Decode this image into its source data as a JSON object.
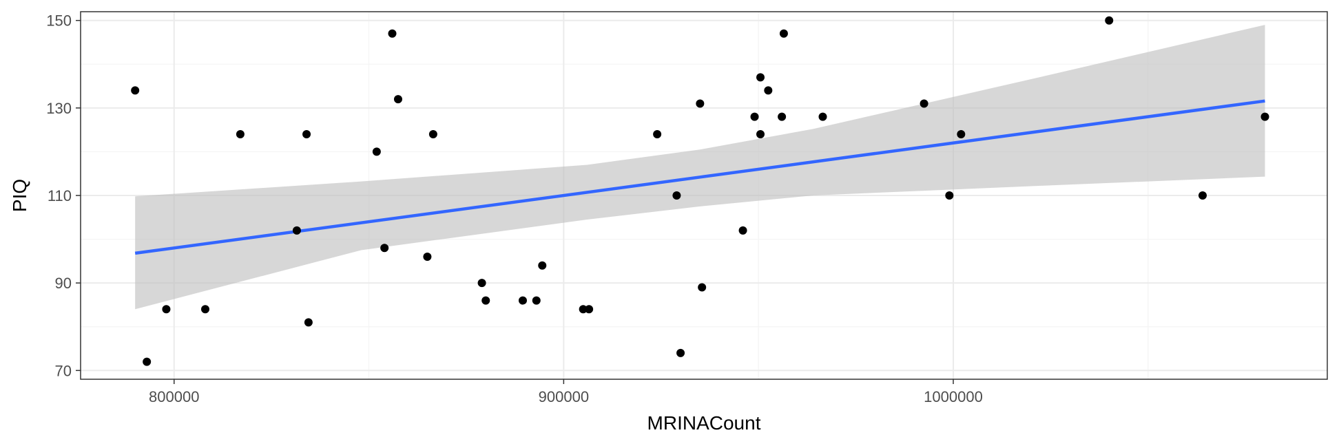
{
  "chart_data": {
    "type": "scatter",
    "title": "",
    "xlabel": "MRINACount",
    "ylabel": "PIQ",
    "xlim": [
      776000,
      1096000
    ],
    "ylim": [
      68,
      152
    ],
    "x_ticks": [
      800000,
      900000,
      1000000
    ],
    "x_tick_labels": [
      "800000",
      "900000",
      "1000000"
    ],
    "x_minor_ticks": [
      850000,
      950000,
      1050000
    ],
    "y_ticks": [
      70,
      90,
      110,
      130,
      150
    ],
    "y_tick_labels": [
      "70",
      "90",
      "110",
      "130",
      "150"
    ],
    "y_minor_ticks": [
      80,
      100,
      120,
      140
    ],
    "grid": true,
    "points": [
      {
        "x": 790000,
        "y": 134
      },
      {
        "x": 793000,
        "y": 72
      },
      {
        "x": 798000,
        "y": 84
      },
      {
        "x": 808000,
        "y": 84
      },
      {
        "x": 817000,
        "y": 124
      },
      {
        "x": 831500,
        "y": 102
      },
      {
        "x": 834000,
        "y": 124
      },
      {
        "x": 834500,
        "y": 81
      },
      {
        "x": 852000,
        "y": 120
      },
      {
        "x": 854000,
        "y": 98
      },
      {
        "x": 856000,
        "y": 147
      },
      {
        "x": 857500,
        "y": 132
      },
      {
        "x": 865000,
        "y": 96
      },
      {
        "x": 866500,
        "y": 124
      },
      {
        "x": 879000,
        "y": 90
      },
      {
        "x": 880000,
        "y": 86
      },
      {
        "x": 889500,
        "y": 86
      },
      {
        "x": 893000,
        "y": 86
      },
      {
        "x": 894500,
        "y": 94
      },
      {
        "x": 905000,
        "y": 84
      },
      {
        "x": 906500,
        "y": 84
      },
      {
        "x": 924000,
        "y": 124
      },
      {
        "x": 929000,
        "y": 110
      },
      {
        "x": 930000,
        "y": 74
      },
      {
        "x": 935000,
        "y": 131
      },
      {
        "x": 935500,
        "y": 89
      },
      {
        "x": 946000,
        "y": 102
      },
      {
        "x": 949000,
        "y": 128
      },
      {
        "x": 950500,
        "y": 137
      },
      {
        "x": 950500,
        "y": 124
      },
      {
        "x": 952500,
        "y": 134
      },
      {
        "x": 956000,
        "y": 128
      },
      {
        "x": 956500,
        "y": 147
      },
      {
        "x": 966500,
        "y": 128
      },
      {
        "x": 992500,
        "y": 131
      },
      {
        "x": 999000,
        "y": 110
      },
      {
        "x": 1002000,
        "y": 124
      },
      {
        "x": 1040000,
        "y": 150
      },
      {
        "x": 1064000,
        "y": 110
      },
      {
        "x": 1080000,
        "y": 128
      }
    ],
    "regression": {
      "x_start": 790000,
      "y_start": 96.8,
      "x_end": 1080000,
      "y_end": 131.6,
      "confidence_band": [
        {
          "x": 790000,
          "lo": 84.0,
          "hi": 109.8
        },
        {
          "x": 848000,
          "lo": 97.5,
          "hi": 113.2
        },
        {
          "x": 906000,
          "lo": 104.5,
          "hi": 117.0
        },
        {
          "x": 935000,
          "lo": 107.5,
          "hi": 120.5
        },
        {
          "x": 964000,
          "lo": 110.0,
          "hi": 125.2
        },
        {
          "x": 1022000,
          "lo": 112.2,
          "hi": 137.0
        },
        {
          "x": 1080000,
          "lo": 114.3,
          "hi": 149.0
        }
      ]
    },
    "colors": {
      "points": "#000000",
      "line": "#3366ff",
      "band": "#bfbfbf",
      "grid_major": "#ebebeb",
      "grid_minor": "#f4f4f4",
      "panel_border": "#333333",
      "tick": "#333333"
    }
  }
}
